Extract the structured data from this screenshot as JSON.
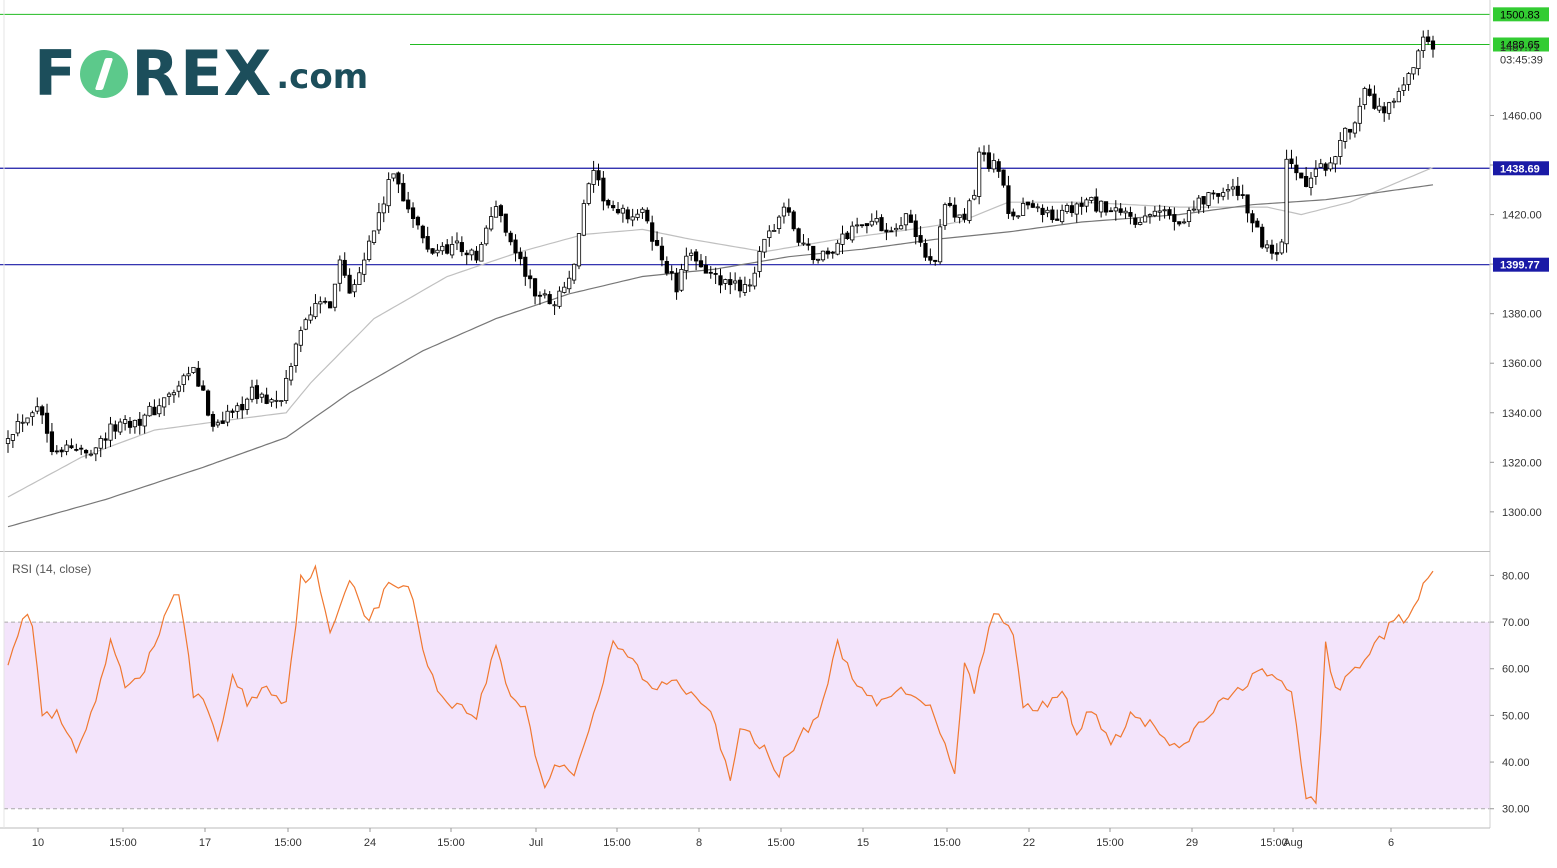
{
  "brand": {
    "logo_part1": "F",
    "logo_part2": "REX",
    "logo_suffix": ".com"
  },
  "indicator_label": "RSI (14, close)",
  "colors": {
    "up": "#ffffff",
    "down": "#000000",
    "green_line": "#22bb22",
    "blue_line": "#1a1aa6",
    "ma_fast": "#c0c0c0",
    "ma_slow": "#777777",
    "rsi_line": "#f07830",
    "rsi_band": "#f3e4fb"
  },
  "chart_data": [
    {
      "type": "candlestick",
      "y_ticks": [
        1300,
        1320,
        1340,
        1360,
        1380,
        1400,
        1420,
        1440,
        1460
      ],
      "y_tick_labels": [
        "1300.00",
        "1320.00",
        "1340.00",
        "1360.00",
        "1380.00",
        "1400.00",
        "1420.00",
        "1440.00",
        "1460.00"
      ],
      "ylim": [
        1284.6,
        1505
      ],
      "x_labels": [
        "10",
        "15:00",
        "17",
        "15:00",
        "24",
        "15:00",
        "Jul",
        "15:00",
        "8",
        "15:00",
        "15",
        "15:00",
        "22",
        "15:00",
        "29",
        "15:00",
        "Aug",
        "6"
      ],
      "price_labels": [
        {
          "text": "1500.83",
          "value": 1500.83,
          "style": "green"
        },
        {
          "text": "1488.65",
          "value": 1488.65,
          "style": "green"
        },
        {
          "text": "1487.71",
          "value": 1487.71,
          "style": "plain"
        },
        {
          "text": "03:45:39",
          "value": 1482.5,
          "style": "plain"
        },
        {
          "text": "1438.69",
          "value": 1438.69,
          "style": "blue"
        },
        {
          "text": "1399.77",
          "value": 1399.77,
          "style": "blue"
        }
      ],
      "horizontal_lines": [
        {
          "value": 1500.83,
          "color": "green"
        },
        {
          "value": 1488.65,
          "color": "green"
        },
        {
          "value": 1438.69,
          "color": "blue"
        },
        {
          "value": 1399.77,
          "color": "blue"
        }
      ],
      "anchors": [
        [
          0,
          1332
        ],
        [
          6,
          1344
        ],
        [
          9,
          1327
        ],
        [
          16,
          1324
        ],
        [
          23,
          1336
        ],
        [
          28,
          1338
        ],
        [
          35,
          1350
        ],
        [
          38,
          1357
        ],
        [
          42,
          1336
        ],
        [
          46,
          1340
        ],
        [
          50,
          1348
        ],
        [
          56,
          1343
        ],
        [
          58,
          1360
        ],
        [
          61,
          1380
        ],
        [
          66,
          1385
        ],
        [
          68,
          1402
        ],
        [
          70,
          1390
        ],
        [
          74,
          1408
        ],
        [
          79,
          1437
        ],
        [
          86,
          1405
        ],
        [
          92,
          1408
        ],
        [
          96,
          1402
        ],
        [
          100,
          1424
        ],
        [
          104,
          1405
        ],
        [
          108,
          1388
        ],
        [
          112,
          1385
        ],
        [
          116,
          1398
        ],
        [
          118,
          1425
        ],
        [
          120,
          1435
        ],
        [
          124,
          1420
        ],
        [
          130,
          1420
        ],
        [
          134,
          1402
        ],
        [
          137,
          1390
        ],
        [
          140,
          1406
        ],
        [
          144,
          1395
        ],
        [
          148,
          1390
        ],
        [
          152,
          1393
        ],
        [
          156,
          1412
        ],
        [
          159,
          1423
        ],
        [
          162,
          1410
        ],
        [
          166,
          1402
        ],
        [
          170,
          1408
        ],
        [
          175,
          1418
        ],
        [
          180,
          1415
        ],
        [
          184,
          1418
        ],
        [
          188,
          1405
        ],
        [
          189,
          1400
        ],
        [
          190,
          1404
        ],
        [
          192,
          1422
        ],
        [
          196,
          1418
        ],
        [
          198,
          1428
        ],
        [
          199,
          1445
        ],
        [
          203,
          1438
        ],
        [
          205,
          1420
        ],
        [
          210,
          1425
        ],
        [
          214,
          1418
        ],
        [
          218,
          1422
        ],
        [
          222,
          1425
        ],
        [
          226,
          1420
        ],
        [
          230,
          1420
        ],
        [
          232,
          1415
        ],
        [
          236,
          1422
        ],
        [
          240,
          1418
        ],
        [
          244,
          1425
        ],
        [
          248,
          1430
        ],
        [
          253,
          1428
        ],
        [
          256,
          1412
        ],
        [
          259,
          1402
        ],
        [
          261,
          1406
        ],
        [
          262,
          1440
        ],
        [
          266,
          1432
        ],
        [
          270,
          1440
        ],
        [
          274,
          1452
        ],
        [
          278,
          1468
        ],
        [
          282,
          1460
        ],
        [
          286,
          1470
        ],
        [
          290,
          1488.65
        ],
        [
          292,
          1487.71
        ]
      ],
      "n_candles": 293,
      "ma_fast": [
        [
          0,
          1306
        ],
        [
          15,
          1322
        ],
        [
          30,
          1333
        ],
        [
          45,
          1337
        ],
        [
          57,
          1340
        ],
        [
          62,
          1352
        ],
        [
          75,
          1378
        ],
        [
          90,
          1395
        ],
        [
          105,
          1405
        ],
        [
          118,
          1412
        ],
        [
          130,
          1414
        ],
        [
          140,
          1410
        ],
        [
          155,
          1405
        ],
        [
          170,
          1410
        ],
        [
          185,
          1414
        ],
        [
          195,
          1417
        ],
        [
          205,
          1425
        ],
        [
          220,
          1425
        ],
        [
          240,
          1423
        ],
        [
          258,
          1423
        ],
        [
          265,
          1420
        ],
        [
          275,
          1425
        ],
        [
          292,
          1439
        ]
      ],
      "ma_slow": [
        [
          0,
          1294
        ],
        [
          20,
          1305
        ],
        [
          40,
          1318
        ],
        [
          57,
          1330
        ],
        [
          70,
          1348
        ],
        [
          85,
          1365
        ],
        [
          100,
          1378
        ],
        [
          115,
          1388
        ],
        [
          130,
          1395
        ],
        [
          145,
          1398
        ],
        [
          160,
          1403
        ],
        [
          175,
          1406
        ],
        [
          190,
          1410
        ],
        [
          205,
          1413
        ],
        [
          220,
          1417
        ],
        [
          240,
          1420
        ],
        [
          255,
          1424
        ],
        [
          270,
          1426
        ],
        [
          292,
          1432
        ]
      ]
    },
    {
      "type": "line",
      "y_ticks": [
        30,
        40,
        50,
        60,
        70,
        80
      ],
      "y_tick_labels": [
        "30.00",
        "40.00",
        "50.00",
        "60.00",
        "70.00",
        "80.00"
      ],
      "ylim": [
        26.3,
        84.8
      ],
      "band": [
        30,
        70
      ],
      "rsi_anchors": [
        [
          0,
          62
        ],
        [
          3,
          71
        ],
        [
          5,
          70
        ],
        [
          7,
          50
        ],
        [
          10,
          50
        ],
        [
          14,
          42
        ],
        [
          18,
          52
        ],
        [
          21,
          66
        ],
        [
          24,
          56
        ],
        [
          28,
          60
        ],
        [
          31,
          68
        ],
        [
          35,
          77
        ],
        [
          38,
          55
        ],
        [
          41,
          51
        ],
        [
          43,
          45
        ],
        [
          46,
          58
        ],
        [
          49,
          53
        ],
        [
          53,
          56
        ],
        [
          57,
          53
        ],
        [
          60,
          79
        ],
        [
          63,
          81
        ],
        [
          66,
          67
        ],
        [
          70,
          80
        ],
        [
          74,
          70
        ],
        [
          78,
          78
        ],
        [
          82,
          78
        ],
        [
          85,
          65
        ],
        [
          88,
          55
        ],
        [
          92,
          52
        ],
        [
          96,
          50
        ],
        [
          100,
          65
        ],
        [
          103,
          54
        ],
        [
          106,
          52
        ],
        [
          108,
          42
        ],
        [
          110,
          35
        ],
        [
          113,
          40
        ],
        [
          116,
          38
        ],
        [
          120,
          50
        ],
        [
          124,
          65
        ],
        [
          128,
          62
        ],
        [
          132,
          55
        ],
        [
          136,
          58
        ],
        [
          140,
          55
        ],
        [
          144,
          52
        ],
        [
          148,
          35
        ],
        [
          150,
          47
        ],
        [
          154,
          44
        ],
        [
          158,
          38
        ],
        [
          162,
          45
        ],
        [
          166,
          50
        ],
        [
          170,
          65
        ],
        [
          175,
          55
        ],
        [
          178,
          52
        ],
        [
          182,
          55
        ],
        [
          186,
          55
        ],
        [
          190,
          50
        ],
        [
          194,
          38
        ],
        [
          196,
          62
        ],
        [
          198,
          55
        ],
        [
          202,
          73
        ],
        [
          206,
          67
        ],
        [
          208,
          52
        ],
        [
          212,
          52
        ],
        [
          216,
          56
        ],
        [
          219,
          45
        ],
        [
          222,
          52
        ],
        [
          226,
          43
        ],
        [
          230,
          50
        ],
        [
          234,
          48
        ],
        [
          238,
          44
        ],
        [
          240,
          42
        ],
        [
          244,
          48
        ],
        [
          248,
          52
        ],
        [
          252,
          55
        ],
        [
          256,
          60
        ],
        [
          260,
          57
        ],
        [
          263,
          55
        ],
        [
          266,
          33
        ],
        [
          268,
          30
        ],
        [
          270,
          65
        ],
        [
          272,
          55
        ],
        [
          276,
          60
        ],
        [
          280,
          65
        ],
        [
          284,
          70
        ],
        [
          288,
          72
        ],
        [
          290,
          78
        ],
        [
          292,
          80.6
        ]
      ]
    }
  ]
}
